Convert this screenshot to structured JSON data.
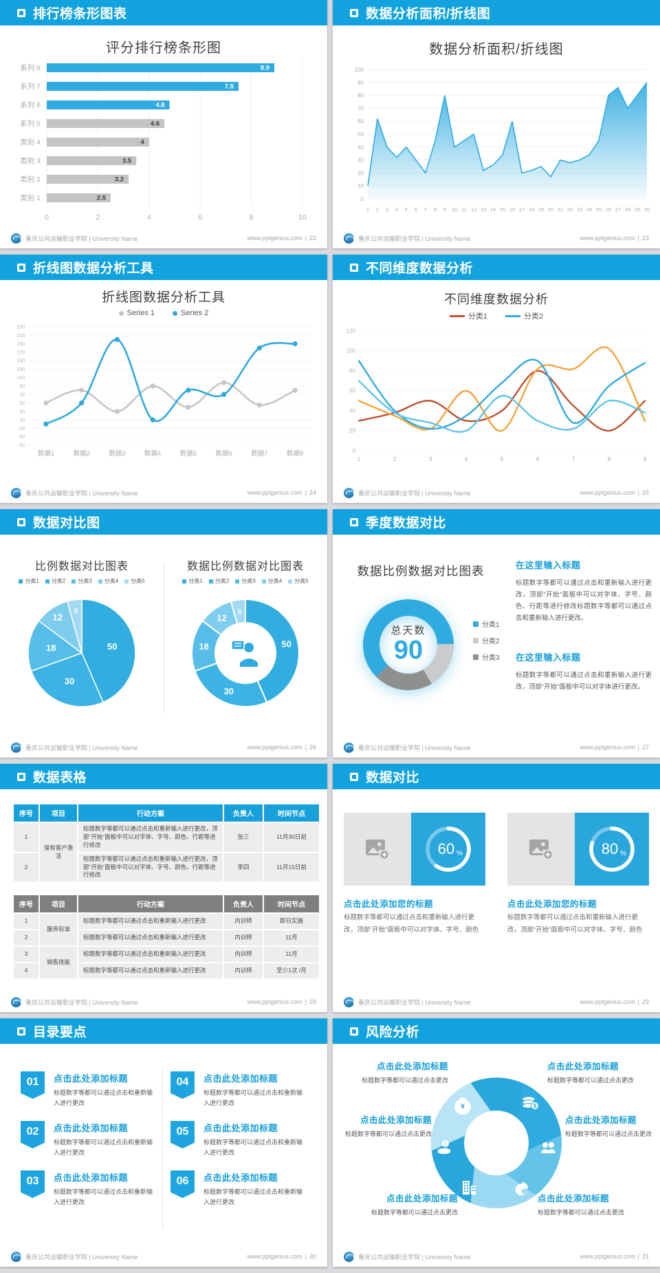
{
  "footer_left": "重庆公共运输职业学院 | University Name",
  "footer_site": "www.pptgenius.com",
  "footer_sep": "|",
  "accent": "#12a3de",
  "slides": {
    "s1": {
      "header": "排行榜条形图表",
      "page": "22"
    },
    "s2": {
      "header": "数据分析面积/折线图",
      "page": "23"
    },
    "s3": {
      "header": "折线图数据分析工具",
      "page": "24"
    },
    "s4": {
      "header": "不同维度数据分析",
      "page": "25"
    },
    "s5": {
      "header": "数据对比图",
      "page": "26"
    },
    "s6": {
      "header": "季度数据对比",
      "page": "27",
      "blocks": [
        {
          "title": "在这里输入标题",
          "body": "标题数字等都可以通过点击和重新输入进行更改，顶部“开始”面板中可以对字体、字号、颜色、行距等进行修改标题数字等都可以通过点击和重新输入进行更改。"
        },
        {
          "title": "在这里输入标题",
          "body": "标题数字等都可以通过点击和重新输入进行更改，顶部“开始”面板中可以对字体进行更改。"
        }
      ]
    },
    "s7": {
      "header": "数据表格",
      "page": "28",
      "table1": {
        "headers": [
          "序号",
          "项目",
          "行动方案",
          "负责人",
          "时间节点"
        ],
        "project": "保有客户激活",
        "rows": [
          [
            "1",
            "标题数字等都可以通过点击和重新输入进行更改，顶部“开始”面板中可以对字体、字号、颜色、行距等进行修改",
            "张三",
            "11月30日前"
          ],
          [
            "2",
            "标题数字等都可以通过点击和重新输入进行更改，顶部“开始”面板中可以对字体、字号、颜色、行距等进行修改",
            "李四",
            "11月15日前"
          ]
        ]
      },
      "table2": {
        "headers": [
          "序号",
          "项目",
          "行动方案",
          "负责人",
          "时间节点"
        ],
        "projects": [
          "服务标准",
          "销售技能"
        ],
        "rows": [
          [
            "1",
            "标题数字等都可以通过点击和重新输入进行更改",
            "内训师",
            "即日实施"
          ],
          [
            "2",
            "标题数字等都可以通过点击和重新输入进行更改",
            "内训师",
            "11月"
          ],
          [
            "3",
            "标题数字等都可以通过点击和重新输入进行更改",
            "内训师",
            "11月"
          ],
          [
            "4",
            "标题数字等都可以通过点击和重新输入进行更改",
            "内训师",
            "至少1次 /月"
          ]
        ]
      }
    },
    "s8": {
      "header": "数据对比",
      "page": "29",
      "cards": [
        {
          "title": "点击此处添加您的标题",
          "body": "标题数字等都可以通过点击和重新输入进行更改，顶部“开始”面板中可以对字体、字号、颜色"
        },
        {
          "title": "点击此处添加您的标题",
          "body": "标题数字等都可以通过点击和重新输入进行更改，顶部“开始”面板中可以对字体、字号、颜色"
        }
      ]
    },
    "s9": {
      "header": "目录要点",
      "page": "30",
      "items": [
        {
          "num": "01",
          "title": "点击此处添加标题",
          "body": "标题数字等都可以通过点击和重新输入进行更改"
        },
        {
          "num": "02",
          "title": "点击此处添加标题",
          "body": "标题数字等都可以通过点击和重新输入进行更改"
        },
        {
          "num": "03",
          "title": "点击此处添加标题",
          "body": "标题数字等都可以通过点击和重新输入进行更改"
        },
        {
          "num": "04",
          "title": "点击此处添加标题",
          "body": "标题数字等都可以通过点击和重新输入进行更改"
        },
        {
          "num": "05",
          "title": "点击此处添加标题",
          "body": "标题数字等都可以通过点击和重新输入进行更改"
        },
        {
          "num": "06",
          "title": "点击此处添加标题",
          "body": "标题数字等都可以通过点击和重新输入进行更改"
        }
      ]
    },
    "s10": {
      "header": "风险分析",
      "page": "31",
      "items": [
        {
          "title": "点击此处添加标题",
          "body": "标题数字等都可以通过点击更改",
          "icon": "money-bag-icon"
        },
        {
          "title": "点击此处添加标题",
          "body": "标题数字等都可以通过点击更改",
          "icon": "coins-icon"
        },
        {
          "title": "点击此处添加标题",
          "body": "标题数字等都可以通过点击更改",
          "icon": "people-icon"
        },
        {
          "title": "点击此处添加标题",
          "body": "标题数字等都可以通过点击更改",
          "icon": "pie-chart-icon"
        },
        {
          "title": "点击此处添加标题",
          "body": "标题数字等都可以通过点击更改",
          "icon": "building-icon"
        },
        {
          "title": "点击此处添加标题",
          "body": "标题数字等都可以通过点击更改",
          "icon": "hand-coin-icon"
        }
      ]
    }
  },
  "chart_data": [
    {
      "id": "bar-ranking",
      "type": "bar",
      "orientation": "horizontal",
      "title": "评分排行榜条形图",
      "categories": [
        "系列 8",
        "系列 7",
        "系列 6",
        "系列 5",
        "类别 4",
        "类别 3",
        "类别 2",
        "类别 1"
      ],
      "values": [
        8.9,
        7.5,
        4.8,
        4.6,
        4,
        3.5,
        3.2,
        2.5
      ],
      "bar_colors": [
        "#2fabe1",
        "#2fabe1",
        "#2fabe1",
        "#c4c4c4",
        "#c4c4c4",
        "#c4c4c4",
        "#c4c4c4",
        "#c4c4c4"
      ],
      "xlim": [
        0,
        10
      ],
      "xticks": [
        0,
        2,
        4,
        6,
        8,
        10
      ],
      "grid": true
    },
    {
      "id": "area-trend",
      "type": "area",
      "title": "数据分析面积/折线图",
      "x": [
        1,
        2,
        3,
        4,
        5,
        6,
        7,
        8,
        9,
        10,
        11,
        12,
        13,
        14,
        15,
        16,
        17,
        18,
        19,
        20,
        21,
        22,
        23,
        24,
        25,
        26,
        27,
        28,
        29,
        30
      ],
      "values": [
        10,
        62,
        40,
        32,
        40,
        30,
        20,
        45,
        80,
        40,
        45,
        50,
        22,
        26,
        34,
        60,
        20,
        22,
        25,
        17,
        30,
        28,
        30,
        34,
        45,
        80,
        86,
        70,
        80,
        90
      ],
      "color": "#2fabe1",
      "ylim": [
        0,
        100
      ],
      "ytick_step": 10,
      "grid": true
    },
    {
      "id": "line-tool",
      "type": "line",
      "title": "折线图数据分析工具",
      "categories": [
        "数据1",
        "数据2",
        "数据3",
        "数据4",
        "数据5",
        "数据6",
        "数据7",
        "数据8"
      ],
      "series": [
        {
          "name": "Series 1",
          "color": "#c6c6c6",
          "values": [
            50,
            80,
            30,
            90,
            40,
            98,
            45,
            80
          ]
        },
        {
          "name": "Series 2",
          "color": "#2fa9de",
          "values": [
            0,
            50,
            200,
            10,
            80,
            70,
            180,
            190
          ]
        }
      ],
      "ylim": [
        -50,
        230
      ],
      "ytick_step": 20,
      "legend_position": "top",
      "markers": true,
      "smooth": true
    },
    {
      "id": "line-dims",
      "type": "line",
      "title": "不同维度数据分析",
      "x": [
        1,
        2,
        3,
        4,
        5,
        6,
        7,
        8,
        9
      ],
      "series": [
        {
          "name": "分类1",
          "color": "#bf4f2e",
          "values": [
            30,
            38,
            50,
            30,
            40,
            80,
            45,
            20,
            50
          ]
        },
        {
          "name": "",
          "color": "#f2a43c",
          "values": [
            50,
            35,
            22,
            60,
            20,
            82,
            82,
            102,
            30
          ]
        },
        {
          "name": "分类2",
          "color": "#2fa9de",
          "values": [
            90,
            40,
            22,
            35,
            68,
            90,
            28,
            65,
            88
          ]
        },
        {
          "name": "",
          "color": "#5ec4e8",
          "values": [
            70,
            38,
            28,
            20,
            55,
            30,
            22,
            50,
            38
          ]
        }
      ],
      "legend": [
        "分类1",
        "分类2"
      ],
      "ylim": [
        0,
        120
      ],
      "ytick_step": 20,
      "markers": false,
      "smooth": true
    },
    {
      "id": "pie-ratio",
      "type": "pie",
      "title": "比例数据对比图表",
      "categories": [
        "分类1",
        "分类2",
        "分类3",
        "分类4",
        "分类5"
      ],
      "values": [
        50,
        30,
        18,
        12,
        5
      ],
      "colors": [
        "#31ade0",
        "#3cb3e4",
        "#55bde8",
        "#7fcdee",
        "#a3daf3"
      ]
    },
    {
      "id": "donut-ratio",
      "type": "pie",
      "inner": true,
      "title": "数据比例数据对比图表",
      "categories": [
        "分类1",
        "分类2",
        "分类3",
        "分类4",
        "分类5"
      ],
      "values": [
        50,
        30,
        18,
        12,
        5
      ],
      "colors": [
        "#31ade0",
        "#3cb3e4",
        "#55bde8",
        "#7fcdee",
        "#a3daf3"
      ],
      "center_icon": "person-icon"
    },
    {
      "id": "donut-days",
      "type": "pie",
      "inner": true,
      "title": "数据比例数据对比图表",
      "categories": [
        "分类1",
        "分类2",
        "分类3"
      ],
      "values": [
        56,
        15,
        19
      ],
      "total_shown": 90,
      "colors": [
        "#2fabe1",
        "#c9cbcc",
        "#8e9090"
      ],
      "center_label": "总天数",
      "center_value": "90",
      "rotation": 225
    },
    {
      "id": "ring-60",
      "type": "ring",
      "percent": 60,
      "unit": "%"
    },
    {
      "id": "ring-80",
      "type": "ring",
      "percent": 80,
      "unit": "%"
    }
  ]
}
